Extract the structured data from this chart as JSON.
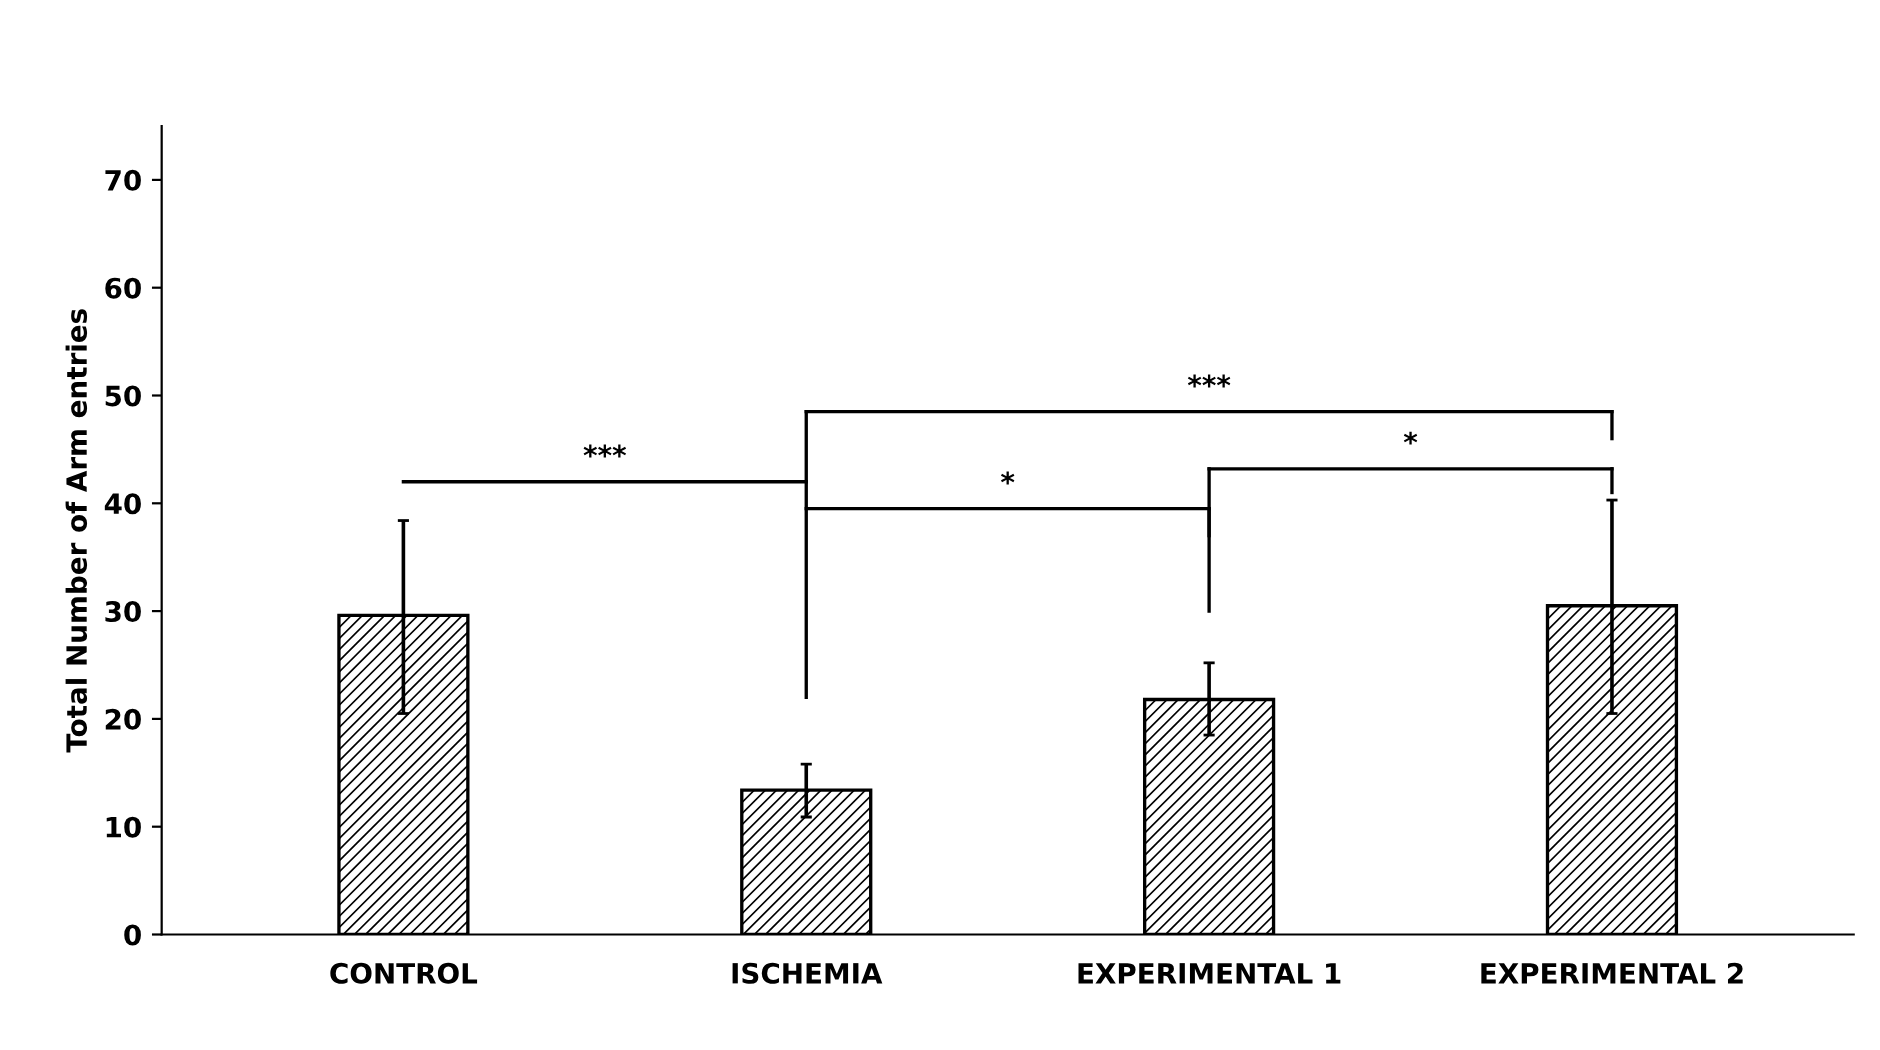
{
  "chart_data": {
    "type": "bar",
    "ylabel": "Total Number of Arm entries",
    "categories": [
      "CONTROL",
      "ISCHEMIA",
      "EXPERIMENTAL 1",
      "EXPERIMENTAL 2"
    ],
    "values": [
      29.6,
      13.4,
      21.8,
      30.5
    ],
    "errors": [
      [
        20.5,
        38.4
      ],
      [
        10.9,
        15.8
      ],
      [
        18.5,
        25.2
      ],
      [
        20.5,
        40.3
      ]
    ],
    "color": "#000000",
    "ylim": [
      0,
      75
    ],
    "yticks": [
      0,
      10,
      20,
      30,
      40,
      50,
      60,
      70
    ],
    "grid": false,
    "legend": false,
    "annotations": [
      "***",
      "***",
      "*",
      "*"
    ]
  }
}
